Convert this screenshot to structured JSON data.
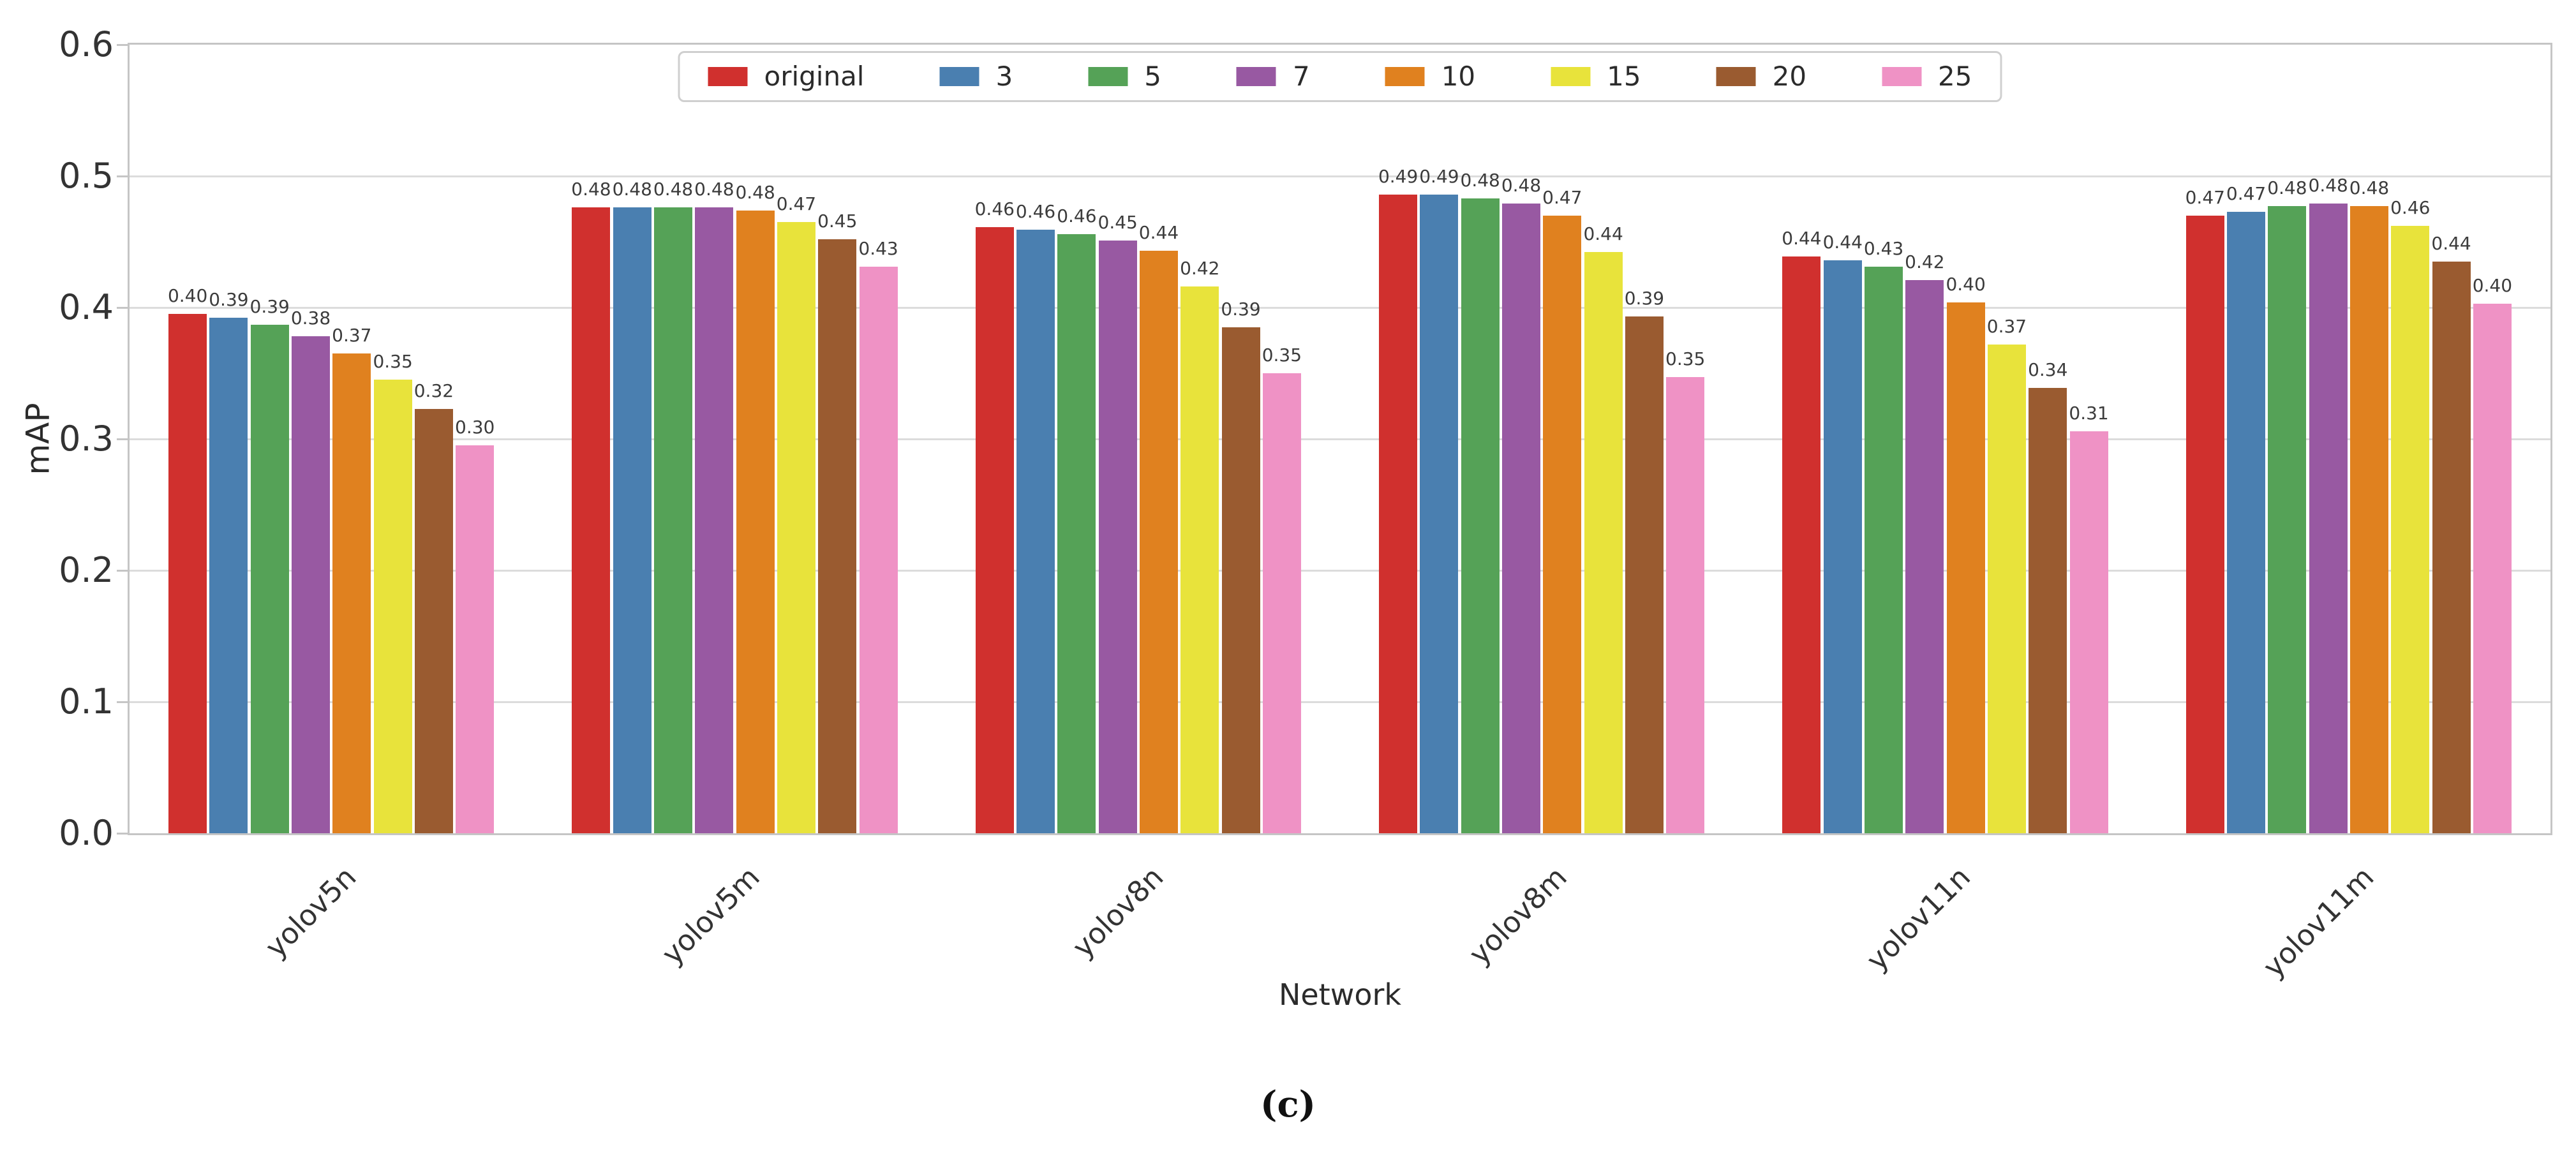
{
  "figure": {
    "caption": "(c)",
    "x_axis_title": "Network",
    "y_axis_title": "mAP"
  },
  "chart_data": {
    "type": "bar",
    "title": "",
    "xlabel": "Network",
    "ylabel": "mAP",
    "ylim": [
      0.0,
      0.6
    ],
    "ytick_labels": [
      "0.0",
      "0.1",
      "0.2",
      "0.3",
      "0.4",
      "0.5",
      "0.6"
    ],
    "grid": "horizontal",
    "legend_position": "top-center",
    "bar_value_labels_shown": true,
    "categories": [
      "yolov5n",
      "yolov5m",
      "yolov8n",
      "yolov8m",
      "yolov11n",
      "yolov11m"
    ],
    "series": [
      {
        "name": "original",
        "color": "#d0302e",
        "values": [
          0.4,
          0.48,
          0.46,
          0.49,
          0.44,
          0.47
        ],
        "bar_heights": [
          0.395,
          0.476,
          0.461,
          0.486,
          0.439,
          0.47
        ]
      },
      {
        "name": "3",
        "color": "#4a7fb0",
        "values": [
          0.39,
          0.48,
          0.46,
          0.49,
          0.44,
          0.47
        ],
        "bar_heights": [
          0.392,
          0.476,
          0.459,
          0.486,
          0.436,
          0.473
        ]
      },
      {
        "name": "5",
        "color": "#55a257",
        "values": [
          0.39,
          0.48,
          0.46,
          0.48,
          0.43,
          0.48
        ],
        "bar_heights": [
          0.387,
          0.476,
          0.456,
          0.483,
          0.431,
          0.477
        ]
      },
      {
        "name": "7",
        "color": "#9859a2",
        "values": [
          0.38,
          0.48,
          0.45,
          0.48,
          0.42,
          0.48
        ],
        "bar_heights": [
          0.378,
          0.476,
          0.451,
          0.479,
          0.421,
          0.479
        ]
      },
      {
        "name": "10",
        "color": "#e0811f",
        "values": [
          0.37,
          0.48,
          0.44,
          0.47,
          0.4,
          0.48
        ],
        "bar_heights": [
          0.365,
          0.474,
          0.443,
          0.47,
          0.404,
          0.477
        ]
      },
      {
        "name": "15",
        "color": "#e8e33b",
        "values": [
          0.35,
          0.47,
          0.42,
          0.44,
          0.37,
          0.46
        ],
        "bar_heights": [
          0.345,
          0.465,
          0.416,
          0.442,
          0.372,
          0.462
        ]
      },
      {
        "name": "20",
        "color": "#9a5b30",
        "values": [
          0.32,
          0.45,
          0.39,
          0.39,
          0.34,
          0.44
        ],
        "bar_heights": [
          0.323,
          0.452,
          0.385,
          0.393,
          0.339,
          0.435
        ]
      },
      {
        "name": "25",
        "color": "#ef92c5",
        "values": [
          0.3,
          0.43,
          0.35,
          0.35,
          0.31,
          0.4
        ],
        "bar_heights": [
          0.295,
          0.431,
          0.35,
          0.347,
          0.306,
          0.403
        ]
      }
    ]
  }
}
